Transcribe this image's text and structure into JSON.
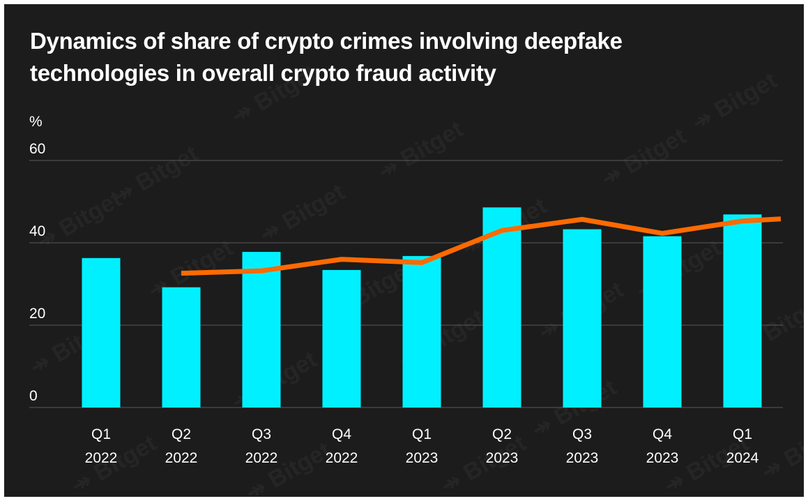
{
  "watermark": "Bitget",
  "colors": {
    "background": "#1c1c1c",
    "bar": "#00f0ff",
    "line": "#ff6a00",
    "grid": "#5a5a5a",
    "text": "#ffffff"
  },
  "chart_data": {
    "type": "bar",
    "title": "Dynamics of share of crypto crimes involving deepfake technologies in overall crypto fraud activity",
    "ylabel": "%",
    "ylim": [
      0,
      60
    ],
    "yticks": [
      "0",
      "20",
      "40",
      "60"
    ],
    "grid": true,
    "categories": [
      [
        "Q1",
        "2022"
      ],
      [
        "Q2",
        "2022"
      ],
      [
        "Q3",
        "2022"
      ],
      [
        "Q4",
        "2022"
      ],
      [
        "Q1",
        "2023"
      ],
      [
        "Q2",
        "2023"
      ],
      [
        "Q3",
        "2023"
      ],
      [
        "Q4",
        "2023"
      ],
      [
        "Q1",
        "2024"
      ]
    ],
    "series": [
      {
        "type": "bar",
        "values": [
          36.3,
          29.2,
          37.8,
          33.4,
          36.8,
          48.6,
          43.3,
          41.6,
          46.9
        ]
      },
      {
        "type": "line",
        "values": [
          null,
          32.6,
          33.2,
          36.0,
          35.2,
          43.0,
          45.7,
          42.3,
          45.3
        ]
      }
    ]
  }
}
